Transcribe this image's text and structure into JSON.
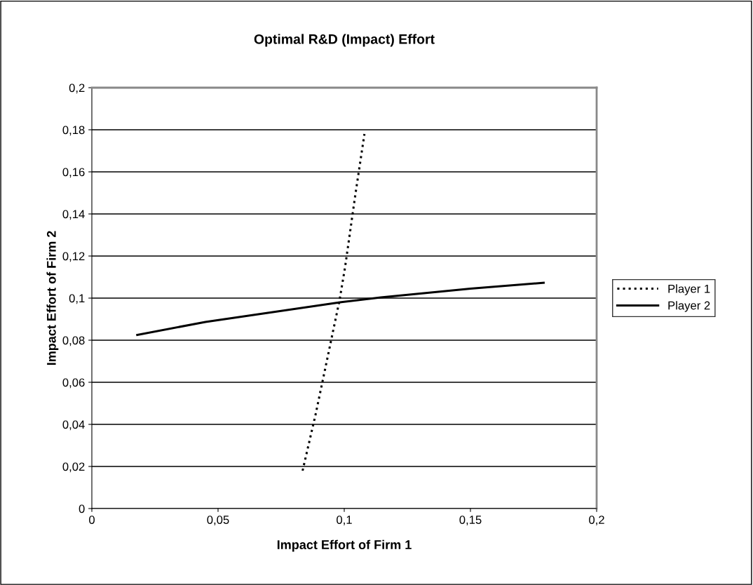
{
  "chart_data": {
    "type": "line",
    "title": "Optimal R&D (Impact) Effort",
    "xlabel": "Impact Effort of Firm 1",
    "ylabel": "Impact Effort of Firm 2",
    "xlim": [
      0,
      0.2
    ],
    "ylim": [
      0,
      0.2
    ],
    "xticks": [
      0,
      {
        "value": 0.05,
        "label": "0,05"
      },
      {
        "value": 0.1,
        "label": "0,1"
      },
      {
        "value": 0.15,
        "label": "0,15"
      },
      {
        "value": 0.2,
        "label": "0,2"
      }
    ],
    "yticks": [
      0,
      {
        "value": 0.02,
        "label": "0,02"
      },
      {
        "value": 0.04,
        "label": "0,04"
      },
      {
        "value": 0.06,
        "label": "0,06"
      },
      {
        "value": 0.08,
        "label": "0,08"
      },
      {
        "value": 0.1,
        "label": "0,1"
      },
      {
        "value": 0.12,
        "label": "0,12"
      },
      {
        "value": 0.14,
        "label": "0,14"
      },
      {
        "value": 0.16,
        "label": "0,16"
      },
      {
        "value": 0.18,
        "label": "0,18"
      },
      {
        "value": 0.2,
        "label": "0,2"
      }
    ],
    "grid": "y",
    "legend": "right",
    "marker": "none",
    "series": [
      {
        "name": "Player 1",
        "color": "#000000",
        "line_style": "dotted",
        "x": [
          0.0835,
          0.0887,
          0.0981,
          0.1003,
          0.1045,
          0.108
        ],
        "values": [
          0.018,
          0.045,
          0.0988,
          0.1145,
          0.15,
          0.178
        ]
      },
      {
        "name": "Player 2",
        "color": "#000000",
        "line_style": "solid",
        "x": [
          0.018,
          0.045,
          0.0988,
          0.1145,
          0.15,
          0.179
        ],
        "values": [
          0.0825,
          0.0887,
          0.0981,
          0.1003,
          0.1045,
          0.1073
        ]
      }
    ]
  }
}
